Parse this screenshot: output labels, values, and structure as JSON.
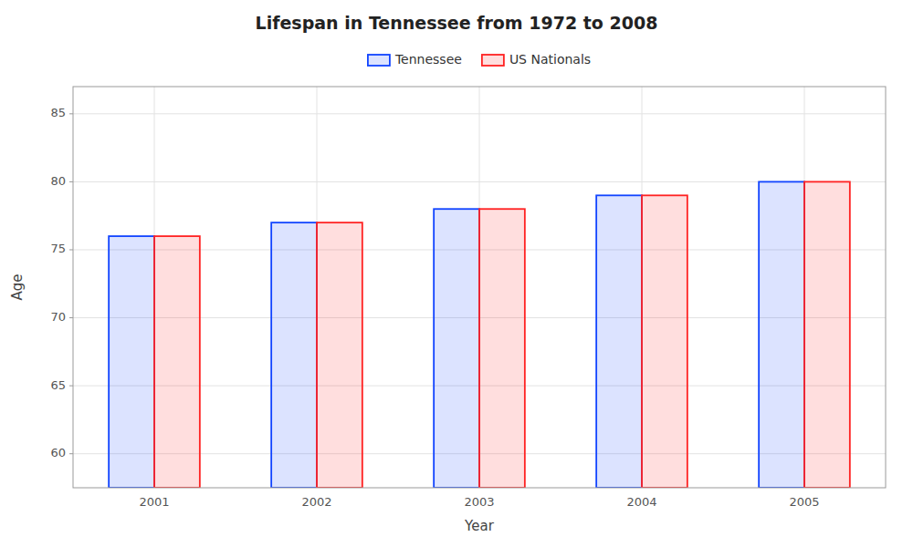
{
  "chart_data": {
    "type": "bar",
    "title": "Lifespan in Tennessee from 1972 to 2008",
    "xlabel": "Year",
    "ylabel": "Age",
    "categories": [
      "2001",
      "2002",
      "2003",
      "2004",
      "2005"
    ],
    "series": [
      {
        "name": "Tennessee",
        "color": "#1144ff",
        "values": [
          76.0,
          77.0,
          78.0,
          79.0,
          80.0
        ]
      },
      {
        "name": "US Nationals",
        "color": "#ff2222",
        "values": [
          76.0,
          77.0,
          78.0,
          79.0,
          80.0
        ]
      }
    ],
    "ylim": [
      57.5,
      87
    ],
    "yticks": [
      60,
      65,
      70,
      75,
      80,
      85
    ],
    "grid": true,
    "legend": "top"
  }
}
